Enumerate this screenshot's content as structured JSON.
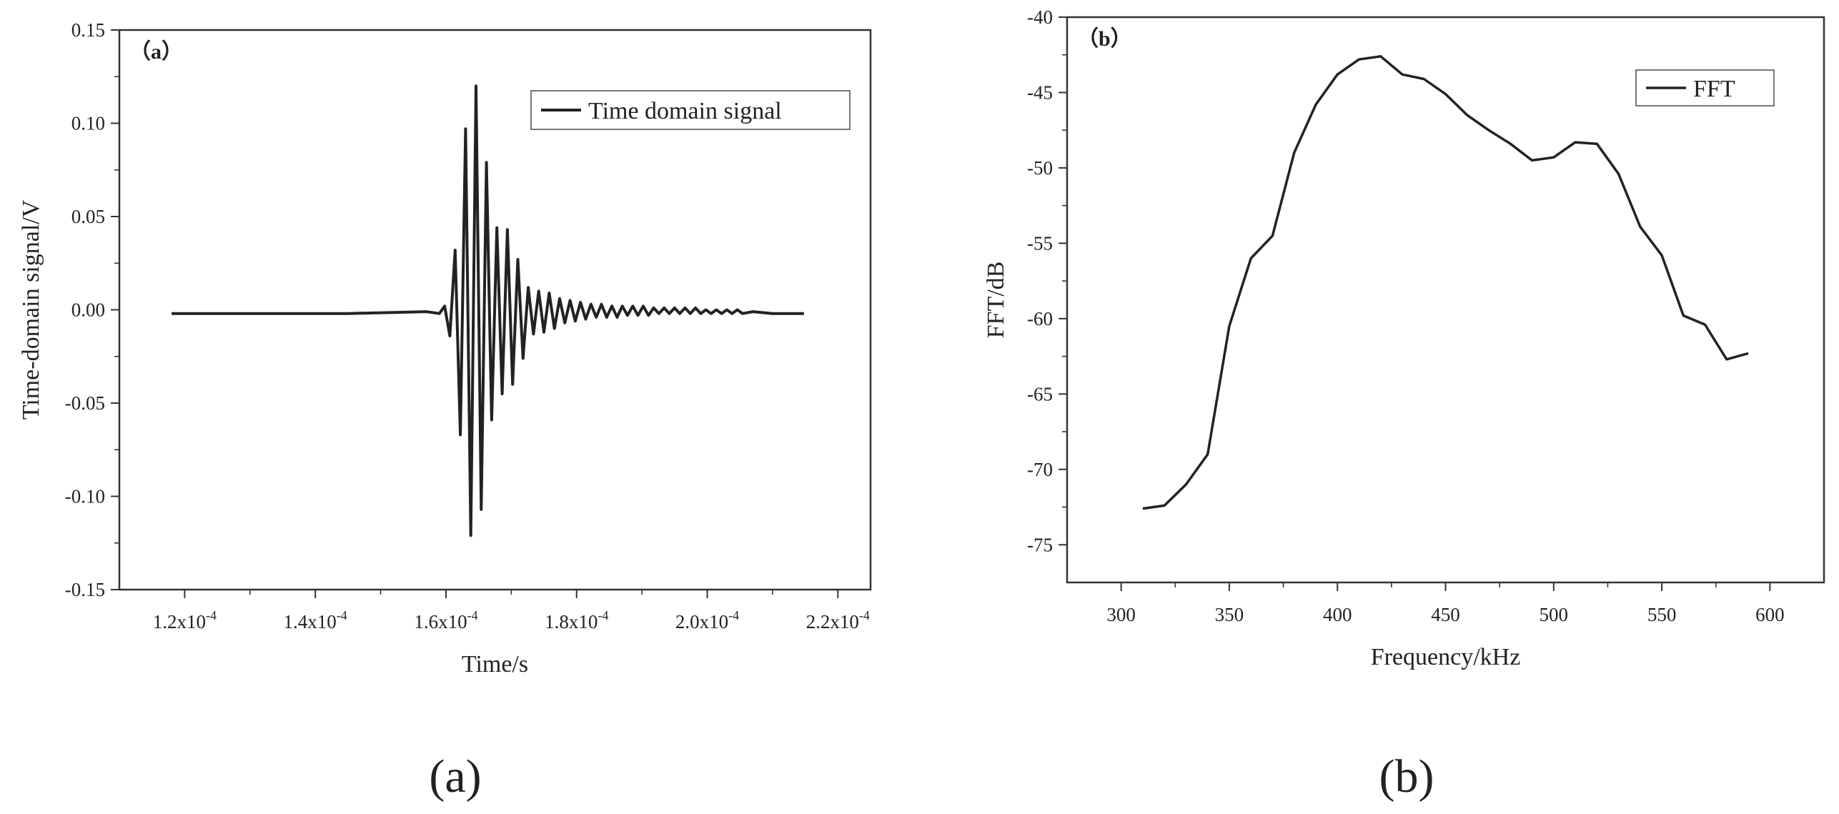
{
  "chart_data": [
    {
      "type": "line",
      "panel_tag": "（a）",
      "caption": "(a)",
      "xlabel": "Time/s",
      "ylabel": "Time-domain signal/V",
      "xlim": [
        0.00011,
        0.000225
      ],
      "ylim": [
        -0.15,
        0.15
      ],
      "x_ticks": [
        0.00012,
        0.00014,
        0.00016,
        0.00018,
        0.0002,
        0.00022
      ],
      "x_tick_labels": [
        {
          "mant": "1.2x10",
          "exp": "-4"
        },
        {
          "mant": "1.4x10",
          "exp": "-4"
        },
        {
          "mant": "1.6x10",
          "exp": "-4"
        },
        {
          "mant": "1.8x10",
          "exp": "-4"
        },
        {
          "mant": "2.0x10",
          "exp": "-4"
        },
        {
          "mant": "2.2x10",
          "exp": "-4"
        }
      ],
      "y_ticks": [
        -0.15,
        -0.1,
        -0.05,
        0.0,
        0.05,
        0.1,
        0.15
      ],
      "y_tick_labels": [
        "-0.15",
        "-0.10",
        "-0.05",
        "0.00",
        "0.05",
        "0.10",
        "0.15"
      ],
      "legend": {
        "position": "top-right",
        "entries": [
          "Time domain signal"
        ]
      },
      "grid": false,
      "series": [
        {
          "name": "Time domain signal",
          "x": [
            0.000118,
            0.00013,
            0.000145,
            0.000157,
            0.000159,
            0.0001598,
            0.0001606,
            0.0001614,
            0.0001622,
            0.000163,
            0.0001638,
            0.0001646,
            0.0001654,
            0.0001662,
            0.000167,
            0.0001678,
            0.0001686,
            0.0001694,
            0.0001702,
            0.000171,
            0.0001718,
            0.0001726,
            0.0001734,
            0.0001742,
            0.000175,
            0.0001758,
            0.0001766,
            0.0001774,
            0.0001782,
            0.000179,
            0.0001798,
            0.0001806,
            0.0001814,
            0.0001822,
            0.000183,
            0.0001838,
            0.0001846,
            0.0001854,
            0.0001862,
            0.000187,
            0.0001878,
            0.0001886,
            0.0001894,
            0.0001902,
            0.000191,
            0.0001918,
            0.0001926,
            0.0001934,
            0.0001942,
            0.000195,
            0.0001958,
            0.0001966,
            0.0001974,
            0.0001982,
            0.000199,
            0.0001998,
            0.0002006,
            0.0002014,
            0.0002022,
            0.000203,
            0.0002038,
            0.0002046,
            0.0002054,
            0.000207,
            0.00021,
            0.0002148
          ],
          "y": [
            -0.002,
            -0.002,
            -0.002,
            -0.001,
            -0.002,
            0.002,
            -0.014,
            0.032,
            -0.067,
            0.097,
            -0.121,
            0.12,
            -0.107,
            0.079,
            -0.059,
            0.044,
            -0.045,
            0.043,
            -0.04,
            0.027,
            -0.026,
            0.012,
            -0.013,
            0.01,
            -0.012,
            0.009,
            -0.01,
            0.006,
            -0.007,
            0.005,
            -0.006,
            0.004,
            -0.005,
            0.003,
            -0.004,
            0.003,
            -0.004,
            0.002,
            -0.004,
            0.002,
            -0.003,
            0.002,
            -0.003,
            0.002,
            -0.003,
            0.001,
            -0.002,
            0.001,
            -0.002,
            0.001,
            -0.002,
            0.001,
            -0.002,
            0.001,
            -0.002,
            0.0,
            -0.002,
            0.0,
            -0.002,
            0.0,
            -0.002,
            0.0,
            -0.002,
            -0.001,
            -0.002,
            -0.002
          ]
        }
      ]
    },
    {
      "type": "line",
      "panel_tag": "（b）",
      "caption": "(b)",
      "xlabel": "Frequency/kHz",
      "ylabel": "FFT/dB",
      "xlim": [
        275,
        625
      ],
      "ylim": [
        -77.5,
        -40
      ],
      "x_ticks": [
        300,
        350,
        400,
        450,
        500,
        550,
        600
      ],
      "x_tick_labels": [
        "300",
        "350",
        "400",
        "450",
        "500",
        "550",
        "600"
      ],
      "y_ticks": [
        -75,
        -70,
        -65,
        -60,
        -55,
        -50,
        -45,
        -40
      ],
      "y_tick_labels": [
        "-75",
        "-70",
        "-65",
        "-60",
        "-55",
        "-50",
        "-45",
        "-40"
      ],
      "legend": {
        "position": "top-right",
        "entries": [
          "FFT"
        ]
      },
      "grid": false,
      "series": [
        {
          "name": "FFT",
          "x": [
            310,
            320,
            330,
            340,
            350,
            360,
            370,
            380,
            390,
            400,
            410,
            420,
            430,
            440,
            450,
            460,
            470,
            480,
            490,
            500,
            510,
            520,
            530,
            540,
            550,
            560,
            570,
            580,
            590
          ],
          "y": [
            -72.6,
            -72.4,
            -71.0,
            -69.0,
            -60.5,
            -56.0,
            -54.5,
            -49.0,
            -45.8,
            -43.8,
            -42.8,
            -42.6,
            -43.8,
            -44.1,
            -45.1,
            -46.5,
            -47.5,
            -48.4,
            -49.5,
            -49.3,
            -48.3,
            -48.4,
            -50.4,
            -53.9,
            -55.8,
            -59.8,
            -60.4,
            -62.7,
            -62.3
          ]
        }
      ]
    }
  ]
}
